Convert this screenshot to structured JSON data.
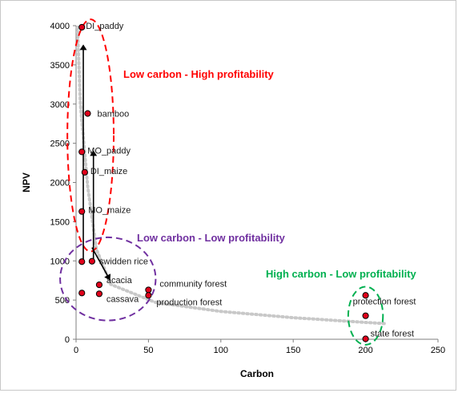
{
  "chart_data": {
    "type": "scatter",
    "xlabel": "Carbon",
    "ylabel": "NPV",
    "xlim": [
      0,
      250
    ],
    "ylim": [
      0,
      4000
    ],
    "xticks": [
      "0",
      "50",
      "100",
      "150",
      "200",
      "250"
    ],
    "yticks": [
      "0",
      "500",
      "1000",
      "1500",
      "2000",
      "2500",
      "3000",
      "3500",
      "4000"
    ],
    "grid": false,
    "points": [
      {
        "label": "DI_paddy",
        "x": 4,
        "y": 3980
      },
      {
        "label": "bamboo",
        "x": 8,
        "y": 2880
      },
      {
        "label": "MO_paddy",
        "x": 4,
        "y": 2390
      },
      {
        "label": "DI_maize",
        "x": 6,
        "y": 2130
      },
      {
        "label": "MO_maize",
        "x": 4,
        "y": 1630
      },
      {
        "label": "",
        "x": 4,
        "y": 990
      },
      {
        "label": "swidden rice",
        "x": 11,
        "y": 995
      },
      {
        "label": "acacia",
        "x": 16,
        "y": 695
      },
      {
        "label": "",
        "x": 4,
        "y": 590
      },
      {
        "label": "cassava",
        "x": 16,
        "y": 580
      },
      {
        "label": "community forest",
        "x": 50,
        "y": 630
      },
      {
        "label": "production forest",
        "x": 50,
        "y": 560
      },
      {
        "label": "",
        "x": 200,
        "y": 560
      },
      {
        "label": "protection forest",
        "x": 200,
        "y": 300
      },
      {
        "label": "state forest",
        "x": 200,
        "y": 5
      }
    ],
    "trend_line": [
      [
        1,
        3980
      ],
      [
        3,
        3000
      ],
      [
        8,
        1950
      ],
      [
        14,
        1150
      ],
      [
        24,
        700
      ],
      [
        55,
        470
      ],
      [
        100,
        355
      ],
      [
        150,
        275
      ],
      [
        200,
        215
      ],
      [
        213,
        200
      ]
    ],
    "arrows": [
      {
        "from": [
          5,
          960
        ],
        "to": [
          5,
          3740
        ]
      },
      {
        "from": [
          12,
          960
        ],
        "to": [
          12,
          2390
        ]
      },
      {
        "from": [
          11,
          1170
        ],
        "to": [
          23,
          770
        ]
      }
    ],
    "zones": [
      {
        "label": "Low carbon - High profitability",
        "color": "#ff0000",
        "cx": 10,
        "cy": 2600,
        "rx": 16,
        "ry": 1480
      },
      {
        "label": "Low carbon - Low profitability",
        "color": "#7030a0",
        "cx": 22,
        "cy": 770,
        "rx": 33,
        "ry": 530
      },
      {
        "label": "High carbon - Low profitability",
        "color": "#00b050",
        "cx": 200,
        "cy": 300,
        "rx": 12,
        "ry": 370
      }
    ]
  }
}
